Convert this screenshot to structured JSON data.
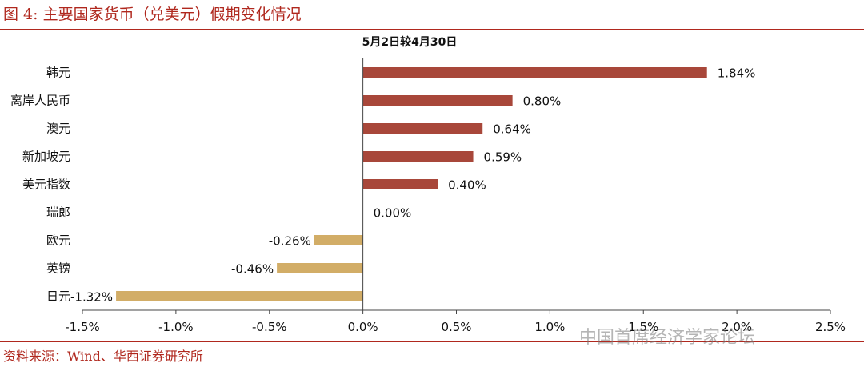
{
  "figure": {
    "title": "图 4:  主要国家货币（兑美元）假期变化情况",
    "source": "资料来源：Wind、华西证券研究所",
    "watermark": "中国首席经济学家论坛"
  },
  "colors": {
    "brand_red": "#b0281e",
    "positive_bar": "#a8473a",
    "negative_bar": "#d2ad67"
  },
  "chart_data": {
    "type": "bar",
    "orientation": "horizontal",
    "title": "5月2日较4月30日",
    "categories": [
      "韩元",
      "离岸人民币",
      "澳元",
      "新加坡元",
      "美元指数",
      "瑞郎",
      "欧元",
      "英镑",
      "日元"
    ],
    "values": [
      1.84,
      0.8,
      0.64,
      0.59,
      0.4,
      0.0,
      -0.26,
      -0.46,
      -1.32
    ],
    "value_labels": [
      "1.84%",
      "0.80%",
      "0.64%",
      "0.59%",
      "0.40%",
      "0.00%",
      "-0.26%",
      "-0.46%",
      "-1.32%"
    ],
    "xlim": [
      -1.5,
      2.5
    ],
    "xticks": [
      -1.5,
      -1.0,
      -0.5,
      0.0,
      0.5,
      1.0,
      1.5,
      2.0,
      2.5
    ],
    "xtick_labels": [
      "-1.5%",
      "-1.0%",
      "-0.5%",
      "0.0%",
      "0.5%",
      "1.0%",
      "1.5%",
      "2.0%",
      "2.5%"
    ],
    "xlabel": "",
    "ylabel": "",
    "grid": false,
    "legend": "none"
  }
}
